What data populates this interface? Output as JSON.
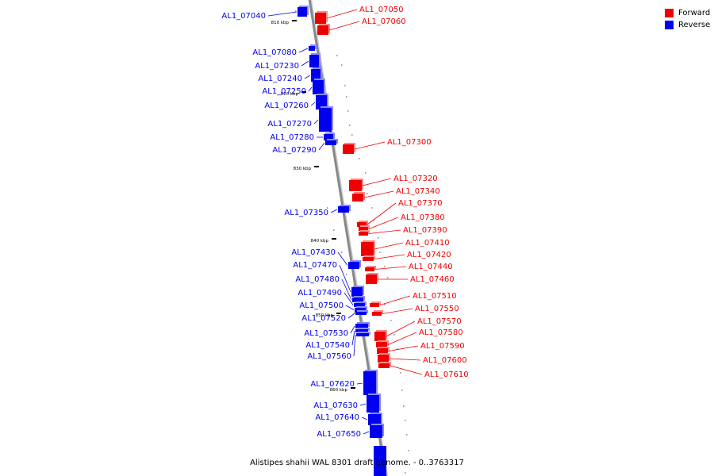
{
  "caption": "Alistipes shahii WAL 8301 draft genome. - 0..3763317",
  "legend": [
    {
      "label": "Forward",
      "color": "#ee0000"
    },
    {
      "label": "Reverse",
      "color": "#0000ee"
    }
  ],
  "colors": {
    "forward": "#ee0000",
    "reverse": "#0000ee",
    "backbone": "#888888",
    "tick": "#000000"
  },
  "ticks": [
    "810 kbp",
    "820 kbp",
    "830 kbp",
    "840 kbp",
    "850 kbp",
    "860 kbp"
  ],
  "reverse_genes": [
    "AL1_07040",
    "AL1_07080",
    "AL1_07230",
    "AL1_07240",
    "AL1_07250",
    "AL1_07260",
    "AL1_07270",
    "AL1_07280",
    "AL1_07290",
    "AL1_07350",
    "AL1_07430",
    "AL1_07470",
    "AL1_07480",
    "AL1_07490",
    "AL1_07500",
    "AL1_07520",
    "AL1_07530",
    "AL1_07540",
    "AL1_07560",
    "AL1_07620",
    "AL1_07630",
    "AL1_07640",
    "AL1_07650"
  ],
  "forward_genes": [
    "AL1_07050",
    "AL1_07060",
    "AL1_07300",
    "AL1_07320",
    "AL1_07340",
    "AL1_07370",
    "AL1_07380",
    "AL1_07390",
    "AL1_07410",
    "AL1_07420",
    "AL1_07440",
    "AL1_07460",
    "AL1_07510",
    "AL1_07550",
    "AL1_07570",
    "AL1_07580",
    "AL1_07590",
    "AL1_07600",
    "AL1_07610"
  ]
}
